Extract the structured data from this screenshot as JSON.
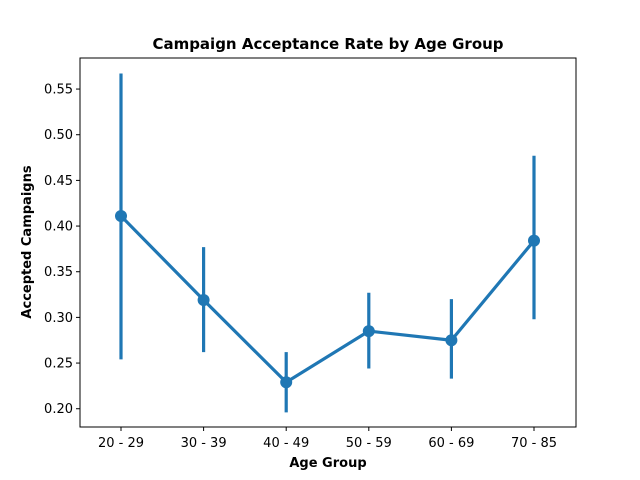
{
  "chart_data": {
    "type": "line",
    "title": "Campaign Acceptance Rate by Age Group",
    "xlabel": "Age Group",
    "ylabel": "Accepted Campaigns",
    "categories": [
      "20 - 29",
      "30 - 39",
      "40 - 49",
      "50 - 59",
      "60 - 69",
      "70 - 85"
    ],
    "series": [
      {
        "values": [
          0.411,
          0.319,
          0.229,
          0.285,
          0.275,
          0.384
        ],
        "error_low": [
          0.254,
          0.262,
          0.196,
          0.244,
          0.233,
          0.298
        ],
        "error_high": [
          0.567,
          0.377,
          0.262,
          0.327,
          0.32,
          0.477
        ],
        "color": "#1f77b4"
      }
    ],
    "yticks": [
      "0.20",
      "0.25",
      "0.30",
      "0.35",
      "0.40",
      "0.45",
      "0.50",
      "0.55"
    ],
    "ylim": [
      0.18,
      0.584
    ],
    "grid": false
  }
}
